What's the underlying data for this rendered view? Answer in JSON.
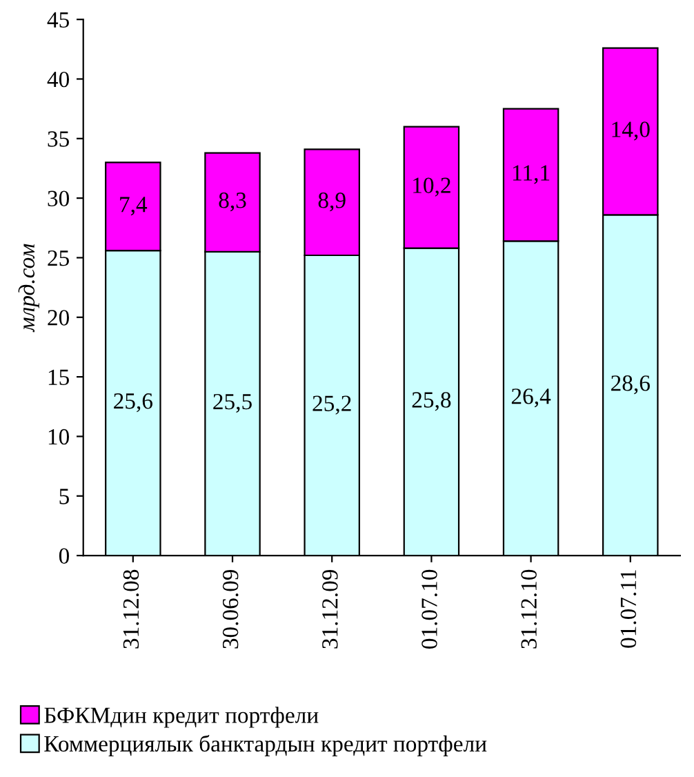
{
  "chart_data": {
    "type": "bar",
    "stacked": true,
    "ylabel": "млрд.сом",
    "categories": [
      "31.12.08",
      "30.06.09",
      "31.12.09",
      "01.07.10",
      "31.12.10",
      "01.07.11"
    ],
    "series": [
      {
        "name": "Коммерциялык банктардын кредит портфели",
        "color": "#ccffff",
        "values": [
          25.6,
          25.5,
          25.2,
          25.8,
          26.4,
          28.6
        ],
        "value_labels": [
          "25,6",
          "25,5",
          "25,2",
          "25,8",
          "26,4",
          "28,6"
        ]
      },
      {
        "name": "БФКМдин кредит портфели",
        "color": "#ff00ff",
        "values": [
          7.4,
          8.3,
          8.9,
          10.2,
          11.1,
          14.0
        ],
        "value_labels": [
          "7,4",
          "8,3",
          "8,9",
          "10,2",
          "11,1",
          "14,0"
        ]
      }
    ],
    "ylim": [
      0,
      45
    ],
    "yticks": [
      0,
      5,
      10,
      15,
      20,
      25,
      30,
      35,
      40,
      45
    ],
    "grid": false,
    "legend": "bottom"
  }
}
